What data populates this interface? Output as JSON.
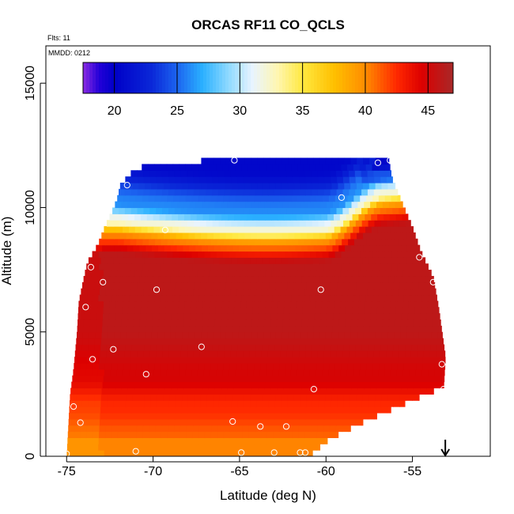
{
  "chart_data": {
    "type": "heatmap",
    "title": "ORCAS RF11 CO_QCLS",
    "flights_label": "Flts: 11",
    "date_label": "MMDD: 0212",
    "xlabel": "Latitude (deg N)",
    "ylabel": "Altitude (m)",
    "xlim": [
      -76.2,
      -50.5
    ],
    "ylim": [
      0,
      16500
    ],
    "x_ticks": [
      -75,
      -70,
      -65,
      -60,
      -55
    ],
    "x_tick_labels": [
      "-75",
      "-70",
      "-65",
      "-60",
      "-55"
    ],
    "y_ticks": [
      0,
      5000,
      10000,
      15000
    ],
    "y_tick_labels": [
      "0",
      "5000",
      "10000",
      "15000"
    ],
    "colorbar": {
      "range": [
        17.5,
        47
      ],
      "ticks": [
        20,
        25,
        30,
        35,
        40,
        45
      ],
      "tick_labels": [
        "20",
        "25",
        "30",
        "35",
        "40",
        "45"
      ],
      "colors": [
        {
          "v": 17.5,
          "c": "#8a2be2"
        },
        {
          "v": 18.8,
          "c": "#2200d8"
        },
        {
          "v": 20,
          "c": "#0000c8"
        },
        {
          "v": 23,
          "c": "#0a28d8"
        },
        {
          "v": 25,
          "c": "#1c64f0"
        },
        {
          "v": 27,
          "c": "#2ab0ff"
        },
        {
          "v": 29,
          "c": "#8ad8ff"
        },
        {
          "v": 31,
          "c": "#e8f4ff"
        },
        {
          "v": 33,
          "c": "#fff6b0"
        },
        {
          "v": 35,
          "c": "#ffe840"
        },
        {
          "v": 37.5,
          "c": "#ffc000"
        },
        {
          "v": 40,
          "c": "#ff8c00"
        },
        {
          "v": 42.5,
          "c": "#ff2800"
        },
        {
          "v": 44.5,
          "c": "#dc0000"
        },
        {
          "v": 47,
          "c": "#a82828"
        }
      ]
    },
    "domain_left": [
      {
        "y": 0,
        "x": -75.0
      },
      {
        "y": 2500,
        "x": -74.8
      },
      {
        "y": 3500,
        "x": -74.6
      },
      {
        "y": 5000,
        "x": -74.4
      },
      {
        "y": 6200,
        "x": -74.3
      },
      {
        "y": 7200,
        "x": -74.0
      },
      {
        "y": 7800,
        "x": -73.8
      },
      {
        "y": 8500,
        "x": -73.2
      },
      {
        "y": 9200,
        "x": -72.8
      },
      {
        "y": 9800,
        "x": -72.4
      },
      {
        "y": 10300,
        "x": -72.1
      },
      {
        "y": 10900,
        "x": -71.9
      },
      {
        "y": 11600,
        "x": -71.0
      },
      {
        "y": 12000,
        "x": -65.5
      }
    ],
    "domain_right": [
      {
        "y": 0,
        "x": -61.0
      },
      {
        "y": 700,
        "x": -59.8
      },
      {
        "y": 1400,
        "x": -57.8
      },
      {
        "y": 2200,
        "x": -55.2
      },
      {
        "y": 2800,
        "x": -53.2
      },
      {
        "y": 4000,
        "x": -53.1
      },
      {
        "y": 6000,
        "x": -53.5
      },
      {
        "y": 7200,
        "x": -53.8
      },
      {
        "y": 8200,
        "x": -54.5
      },
      {
        "y": 9200,
        "x": -55.0
      },
      {
        "y": 10000,
        "x": -55.5
      },
      {
        "y": 11200,
        "x": -56.2
      },
      {
        "y": 12000,
        "x": -56.4
      }
    ],
    "observations": [
      {
        "x": -75.0,
        "y": 100
      },
      {
        "x": -74.6,
        "y": 2000
      },
      {
        "x": -74.2,
        "y": 1350
      },
      {
        "x": -73.9,
        "y": 6000
      },
      {
        "x": -73.6,
        "y": 7600
      },
      {
        "x": -73.5,
        "y": 3900
      },
      {
        "x": -72.9,
        "y": 7000
      },
      {
        "x": -72.3,
        "y": 4300
      },
      {
        "x": -71.5,
        "y": 10900
      },
      {
        "x": -71.0,
        "y": 200
      },
      {
        "x": -70.4,
        "y": 3300
      },
      {
        "x": -69.8,
        "y": 6700
      },
      {
        "x": -69.3,
        "y": 9100
      },
      {
        "x": -67.2,
        "y": 4400
      },
      {
        "x": -65.4,
        "y": 1400
      },
      {
        "x": -65.3,
        "y": 11900
      },
      {
        "x": -64.9,
        "y": 150
      },
      {
        "x": -63.8,
        "y": 1200
      },
      {
        "x": -63.0,
        "y": 150
      },
      {
        "x": -62.3,
        "y": 1200
      },
      {
        "x": -61.5,
        "y": 150
      },
      {
        "x": -61.2,
        "y": 150
      },
      {
        "x": -60.7,
        "y": 2700
      },
      {
        "x": -60.3,
        "y": 6700
      },
      {
        "x": -59.1,
        "y": 10400
      },
      {
        "x": -57.0,
        "y": 11800
      },
      {
        "x": -56.3,
        "y": 11900
      },
      {
        "x": -54.6,
        "y": 8000
      },
      {
        "x": -53.8,
        "y": 7000
      },
      {
        "x": -53.3,
        "y": 3700
      },
      {
        "x": -53.2,
        "y": 2700
      }
    ],
    "arrow_marker": {
      "x": -53.1,
      "direction": "down"
    }
  }
}
